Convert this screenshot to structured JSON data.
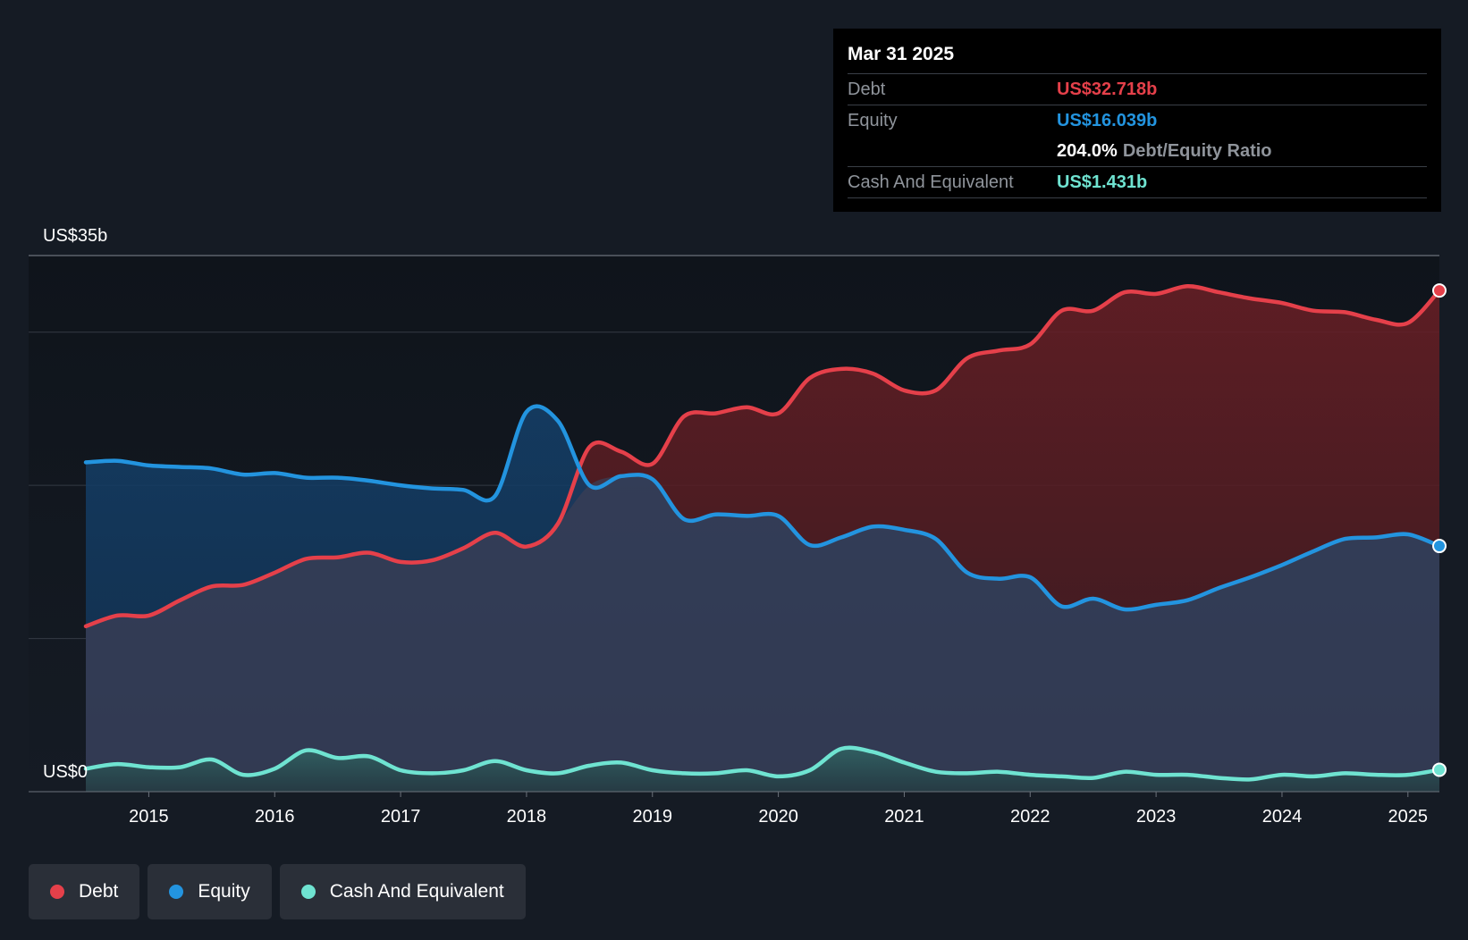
{
  "chart_data": {
    "type": "area",
    "title": "",
    "xlabel": "",
    "ylabel": "",
    "ylim": [
      0,
      35
    ],
    "y_top_label": "US$35b",
    "y_bottom_label": "US$0",
    "x_ticks": [
      "2015",
      "2016",
      "2017",
      "2018",
      "2019",
      "2020",
      "2021",
      "2022",
      "2023",
      "2024",
      "2025"
    ],
    "x_tick_values": [
      2015,
      2016,
      2017,
      2018,
      2019,
      2020,
      2021,
      2022,
      2023,
      2024,
      2025
    ],
    "x_range": [
      2014.5,
      2025.25
    ],
    "gridlines": [
      0,
      10,
      20,
      30,
      35
    ],
    "series": [
      {
        "name": "Debt",
        "color": "#e5404a",
        "points": [
          [
            2014.5,
            10.8
          ],
          [
            2014.75,
            11.5
          ],
          [
            2015.0,
            11.5
          ],
          [
            2015.25,
            12.5
          ],
          [
            2015.5,
            13.4
          ],
          [
            2015.75,
            13.5
          ],
          [
            2016.0,
            14.3
          ],
          [
            2016.25,
            15.2
          ],
          [
            2016.5,
            15.3
          ],
          [
            2016.75,
            15.6
          ],
          [
            2017.0,
            15.0
          ],
          [
            2017.25,
            15.1
          ],
          [
            2017.5,
            15.9
          ],
          [
            2017.75,
            16.9
          ],
          [
            2018.0,
            16.0
          ],
          [
            2018.25,
            17.5
          ],
          [
            2018.5,
            22.5
          ],
          [
            2018.75,
            22.2
          ],
          [
            2019.0,
            21.4
          ],
          [
            2019.25,
            24.5
          ],
          [
            2019.5,
            24.7
          ],
          [
            2019.75,
            25.1
          ],
          [
            2020.0,
            24.7
          ],
          [
            2020.25,
            27.0
          ],
          [
            2020.5,
            27.6
          ],
          [
            2020.75,
            27.3
          ],
          [
            2021.0,
            26.2
          ],
          [
            2021.25,
            26.2
          ],
          [
            2021.5,
            28.3
          ],
          [
            2021.75,
            28.8
          ],
          [
            2022.0,
            29.2
          ],
          [
            2022.25,
            31.4
          ],
          [
            2022.5,
            31.4
          ],
          [
            2022.75,
            32.6
          ],
          [
            2023.0,
            32.5
          ],
          [
            2023.25,
            33.0
          ],
          [
            2023.5,
            32.6
          ],
          [
            2023.75,
            32.2
          ],
          [
            2024.0,
            31.9
          ],
          [
            2024.25,
            31.4
          ],
          [
            2024.5,
            31.3
          ],
          [
            2024.75,
            30.8
          ],
          [
            2025.0,
            30.6
          ],
          [
            2025.25,
            32.718
          ]
        ]
      },
      {
        "name": "Equity",
        "color": "#2394df",
        "points": [
          [
            2014.5,
            21.5
          ],
          [
            2014.75,
            21.6
          ],
          [
            2015.0,
            21.3
          ],
          [
            2015.25,
            21.2
          ],
          [
            2015.5,
            21.1
          ],
          [
            2015.75,
            20.7
          ],
          [
            2016.0,
            20.8
          ],
          [
            2016.25,
            20.5
          ],
          [
            2016.5,
            20.5
          ],
          [
            2016.75,
            20.3
          ],
          [
            2017.0,
            20.0
          ],
          [
            2017.25,
            19.8
          ],
          [
            2017.5,
            19.7
          ],
          [
            2017.75,
            19.3
          ],
          [
            2018.0,
            24.8
          ],
          [
            2018.25,
            24.2
          ],
          [
            2018.5,
            20.0
          ],
          [
            2018.75,
            20.6
          ],
          [
            2019.0,
            20.4
          ],
          [
            2019.25,
            17.8
          ],
          [
            2019.5,
            18.1
          ],
          [
            2019.75,
            18.0
          ],
          [
            2020.0,
            18.0
          ],
          [
            2020.25,
            16.1
          ],
          [
            2020.5,
            16.6
          ],
          [
            2020.75,
            17.3
          ],
          [
            2021.0,
            17.1
          ],
          [
            2021.25,
            16.5
          ],
          [
            2021.5,
            14.3
          ],
          [
            2021.75,
            13.9
          ],
          [
            2022.0,
            14.0
          ],
          [
            2022.25,
            12.1
          ],
          [
            2022.5,
            12.6
          ],
          [
            2022.75,
            11.9
          ],
          [
            2023.0,
            12.2
          ],
          [
            2023.25,
            12.5
          ],
          [
            2023.5,
            13.3
          ],
          [
            2023.75,
            14.0
          ],
          [
            2024.0,
            14.8
          ],
          [
            2024.25,
            15.7
          ],
          [
            2024.5,
            16.5
          ],
          [
            2024.75,
            16.6
          ],
          [
            2025.0,
            16.8
          ],
          [
            2025.25,
            16.039
          ]
        ]
      },
      {
        "name": "Cash And Equivalent",
        "color": "#6fe3d1",
        "points": [
          [
            2014.5,
            1.5
          ],
          [
            2014.75,
            1.8
          ],
          [
            2015.0,
            1.6
          ],
          [
            2015.25,
            1.6
          ],
          [
            2015.5,
            2.1
          ],
          [
            2015.75,
            1.1
          ],
          [
            2016.0,
            1.5
          ],
          [
            2016.25,
            2.7
          ],
          [
            2016.5,
            2.2
          ],
          [
            2016.75,
            2.3
          ],
          [
            2017.0,
            1.4
          ],
          [
            2017.25,
            1.2
          ],
          [
            2017.5,
            1.4
          ],
          [
            2017.75,
            2.0
          ],
          [
            2018.0,
            1.4
          ],
          [
            2018.25,
            1.2
          ],
          [
            2018.5,
            1.7
          ],
          [
            2018.75,
            1.9
          ],
          [
            2019.0,
            1.4
          ],
          [
            2019.25,
            1.2
          ],
          [
            2019.5,
            1.2
          ],
          [
            2019.75,
            1.4
          ],
          [
            2020.0,
            1.0
          ],
          [
            2020.25,
            1.4
          ],
          [
            2020.5,
            2.8
          ],
          [
            2020.75,
            2.6
          ],
          [
            2021.0,
            1.9
          ],
          [
            2021.25,
            1.3
          ],
          [
            2021.5,
            1.2
          ],
          [
            2021.75,
            1.3
          ],
          [
            2022.0,
            1.1
          ],
          [
            2022.25,
            1.0
          ],
          [
            2022.5,
            0.9
          ],
          [
            2022.75,
            1.3
          ],
          [
            2023.0,
            1.1
          ],
          [
            2023.25,
            1.1
          ],
          [
            2023.5,
            0.9
          ],
          [
            2023.75,
            0.8
          ],
          [
            2024.0,
            1.1
          ],
          [
            2024.25,
            1.0
          ],
          [
            2024.5,
            1.2
          ],
          [
            2024.75,
            1.1
          ],
          [
            2025.0,
            1.1
          ],
          [
            2025.25,
            1.431
          ]
        ]
      }
    ],
    "legend": [
      "Debt",
      "Equity",
      "Cash And Equivalent"
    ],
    "legend_position": "bottom-left"
  },
  "tooltip": {
    "date": "Mar 31 2025",
    "debt_label": "Debt",
    "debt_value": "US$32.718b",
    "equity_label": "Equity",
    "equity_value": "US$16.039b",
    "ratio_value": "204.0%",
    "ratio_label": "Debt/Equity Ratio",
    "cash_label": "Cash And Equivalent",
    "cash_value": "US$1.431b"
  },
  "legend": {
    "debt": "Debt",
    "equity": "Equity",
    "cash": "Cash And Equivalent"
  },
  "colors": {
    "debt": "#e5404a",
    "equity": "#2394df",
    "cash": "#6fe3d1",
    "background": "#151b24"
  }
}
